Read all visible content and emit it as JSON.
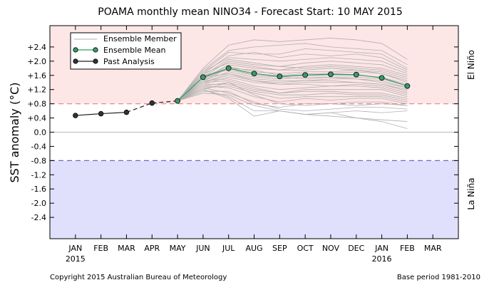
{
  "chart_data": {
    "type": "line",
    "title": "POAMA monthly mean NINO34 - Forecast Start: 10 MAY 2015",
    "ylabel": "SST anomaly (°C)",
    "xlabel": "",
    "ylim": [
      -3.0,
      3.0
    ],
    "grid": false,
    "legend_position": "upper-left",
    "categories": [
      "JAN",
      "FEB",
      "MAR",
      "APR",
      "MAY",
      "JUN",
      "JUL",
      "AUG",
      "SEP",
      "OCT",
      "NOV",
      "DEC",
      "JAN",
      "FEB",
      "MAR"
    ],
    "year_labels": [
      {
        "category_index": 0,
        "text": "2015"
      },
      {
        "category_index": 12,
        "text": "2016"
      }
    ],
    "yticks": [
      2.4,
      2.0,
      1.6,
      1.2,
      0.8,
      0.4,
      0.0,
      -0.4,
      -0.8,
      -1.2,
      -1.6,
      -2.0,
      -2.4
    ],
    "ytick_labels": [
      "+2.4",
      "+2.0",
      "+1.6",
      "+1.2",
      "+0.8",
      "+0.4",
      "0.0",
      "-0.4",
      "-0.8",
      "-1.2",
      "-1.6",
      "-2.0",
      "-2.4"
    ],
    "thresholds": {
      "el_nino": 0.8,
      "la_nina": -0.8,
      "el_nino_label": "El Niño",
      "la_nina_label": "La Niña"
    },
    "colors": {
      "el_nino_fill": "#fde6e6",
      "la_nina_fill": "#e0e0fd",
      "el_nino_line": "#e88a8a",
      "la_nina_line": "#6a6ab8",
      "zero_line": "#bbbbbb",
      "ensemble_member": "#b0b0b0",
      "ensemble_mean": "#2e9e63",
      "ensemble_mean_marker": "#3a9a6a",
      "past_analysis": "#222222"
    },
    "legend": {
      "ensemble_member": "Ensemble Member",
      "ensemble_mean": "Ensemble Mean",
      "past_analysis": "Past Analysis"
    },
    "past_analysis": {
      "name": "Past Analysis",
      "x_index": [
        0,
        1,
        2,
        3,
        4
      ],
      "values": [
        0.47,
        0.52,
        0.56,
        0.82,
        0.88
      ]
    },
    "ensemble_mean": {
      "name": "Ensemble Mean",
      "x_index": [
        4,
        5,
        6,
        7,
        8,
        9,
        10,
        11,
        12,
        13
      ],
      "values": [
        0.88,
        1.55,
        1.8,
        1.65,
        1.57,
        1.61,
        1.63,
        1.62,
        1.53,
        1.3
      ]
    },
    "ensemble_members": {
      "x_index": [
        4,
        5,
        6,
        7,
        8,
        9,
        10,
        11,
        12,
        13
      ],
      "values": [
        [
          0.88,
          1.8,
          2.45,
          2.6,
          2.55,
          2.6,
          2.65,
          2.6,
          2.5,
          2.05
        ],
        [
          0.88,
          1.75,
          2.3,
          2.4,
          2.45,
          2.5,
          2.4,
          2.35,
          2.3,
          1.9
        ],
        [
          0.88,
          1.7,
          2.25,
          2.2,
          2.2,
          2.35,
          2.3,
          2.25,
          2.2,
          1.8
        ],
        [
          0.88,
          1.65,
          2.15,
          2.25,
          2.1,
          2.2,
          2.15,
          2.2,
          2.1,
          1.75
        ],
        [
          0.88,
          1.7,
          2.1,
          2.05,
          2.0,
          2.05,
          2.1,
          2.05,
          2.0,
          1.7
        ],
        [
          0.88,
          1.6,
          2.05,
          1.95,
          1.85,
          1.95,
          2.0,
          1.95,
          1.9,
          1.65
        ],
        [
          0.88,
          1.55,
          2.0,
          1.9,
          1.85,
          1.8,
          1.85,
          1.8,
          1.75,
          1.55
        ],
        [
          0.88,
          1.65,
          1.95,
          1.85,
          1.75,
          1.85,
          1.9,
          1.85,
          1.8,
          1.6
        ],
        [
          0.88,
          1.5,
          1.9,
          1.8,
          1.75,
          1.75,
          1.8,
          1.75,
          1.7,
          1.5
        ],
        [
          0.88,
          1.55,
          1.85,
          1.7,
          1.65,
          1.7,
          1.7,
          1.75,
          1.65,
          1.45
        ],
        [
          0.88,
          1.45,
          1.8,
          1.75,
          1.6,
          1.65,
          1.65,
          1.7,
          1.65,
          1.4
        ],
        [
          0.88,
          1.5,
          1.8,
          1.6,
          1.55,
          1.6,
          1.6,
          1.6,
          1.55,
          1.35
        ],
        [
          0.88,
          1.6,
          1.75,
          1.6,
          1.55,
          1.5,
          1.55,
          1.55,
          1.5,
          1.3
        ],
        [
          0.88,
          1.45,
          1.7,
          1.55,
          1.5,
          1.55,
          1.55,
          1.5,
          1.45,
          1.25
        ],
        [
          0.88,
          1.4,
          1.65,
          1.5,
          1.45,
          1.45,
          1.5,
          1.5,
          1.4,
          1.25
        ],
        [
          0.88,
          1.55,
          1.65,
          1.45,
          1.4,
          1.45,
          1.45,
          1.4,
          1.35,
          1.2
        ],
        [
          0.88,
          1.4,
          1.6,
          1.45,
          1.35,
          1.4,
          1.4,
          1.4,
          1.35,
          1.15
        ],
        [
          0.88,
          1.35,
          1.55,
          1.4,
          1.35,
          1.35,
          1.3,
          1.35,
          1.3,
          1.1
        ],
        [
          0.88,
          1.45,
          1.5,
          1.3,
          1.2,
          1.25,
          1.3,
          1.3,
          1.25,
          1.05
        ],
        [
          0.88,
          1.4,
          1.45,
          1.25,
          1.1,
          1.2,
          1.2,
          1.2,
          1.2,
          1.0
        ],
        [
          0.88,
          1.3,
          1.4,
          1.2,
          1.1,
          1.15,
          1.15,
          1.1,
          1.1,
          0.95
        ],
        [
          0.88,
          1.35,
          1.35,
          1.15,
          1.05,
          1.05,
          1.1,
          1.05,
          1.05,
          0.9
        ],
        [
          0.88,
          1.25,
          1.3,
          1.1,
          0.95,
          1.0,
          1.0,
          1.0,
          1.0,
          0.85
        ],
        [
          0.88,
          1.3,
          1.25,
          1.0,
          0.85,
          0.95,
          0.9,
          0.95,
          0.95,
          0.8
        ],
        [
          0.88,
          1.2,
          1.4,
          1.05,
          0.8,
          0.75,
          0.8,
          0.85,
          0.85,
          0.75
        ],
        [
          0.88,
          1.15,
          1.15,
          0.8,
          0.7,
          0.8,
          0.8,
          0.75,
          0.8,
          0.75
        ],
        [
          0.88,
          1.25,
          1.1,
          0.85,
          0.65,
          0.6,
          0.65,
          0.7,
          0.7,
          0.65
        ],
        [
          0.88,
          1.1,
          1.05,
          0.75,
          0.6,
          0.5,
          0.55,
          0.6,
          0.55,
          0.6
        ],
        [
          0.88,
          1.2,
          1.0,
          0.6,
          0.6,
          0.5,
          0.45,
          0.4,
          0.35,
          0.3
        ],
        [
          0.88,
          1.2,
          0.95,
          0.45,
          0.6,
          0.5,
          0.55,
          0.4,
          0.3,
          0.1
        ]
      ]
    }
  },
  "footer": {
    "copyright": "Copyright 2015 Australian Bureau of Meteorology",
    "base_period": "Base period 1981-2010"
  }
}
